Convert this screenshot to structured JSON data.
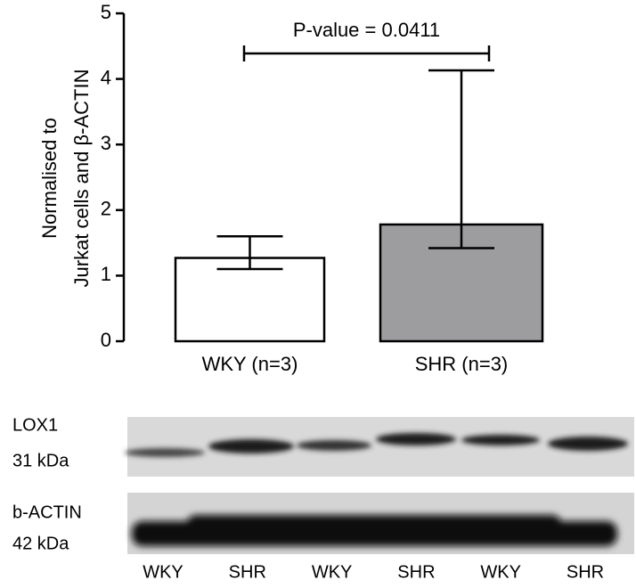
{
  "chart_data": {
    "type": "bar",
    "y_label": [
      "Normalised to",
      "Jurkat cells and β-ACTIN"
    ],
    "categories": [
      "WKY (n=3)",
      "SHR (n=3)"
    ],
    "values": [
      1.27,
      1.78
    ],
    "error_bars": [
      {
        "low": 1.1,
        "high": 1.6
      },
      {
        "low": 1.42,
        "high": 4.13
      }
    ],
    "colors": [
      "#ffffff",
      "#9d9d9f"
    ],
    "ylim": [
      0,
      5
    ],
    "yticks": [
      0,
      1,
      2,
      3,
      4,
      5
    ],
    "annotation": "P-value = 0.0411"
  },
  "blot": {
    "rows": [
      {
        "name": "LOX1",
        "size": "31 kDa"
      },
      {
        "name": "b-ACTIN",
        "size": "42 kDa"
      }
    ],
    "lanes": [
      "WKY",
      "SHR",
      "WKY",
      "SHR",
      "WKY",
      "SHR"
    ]
  }
}
